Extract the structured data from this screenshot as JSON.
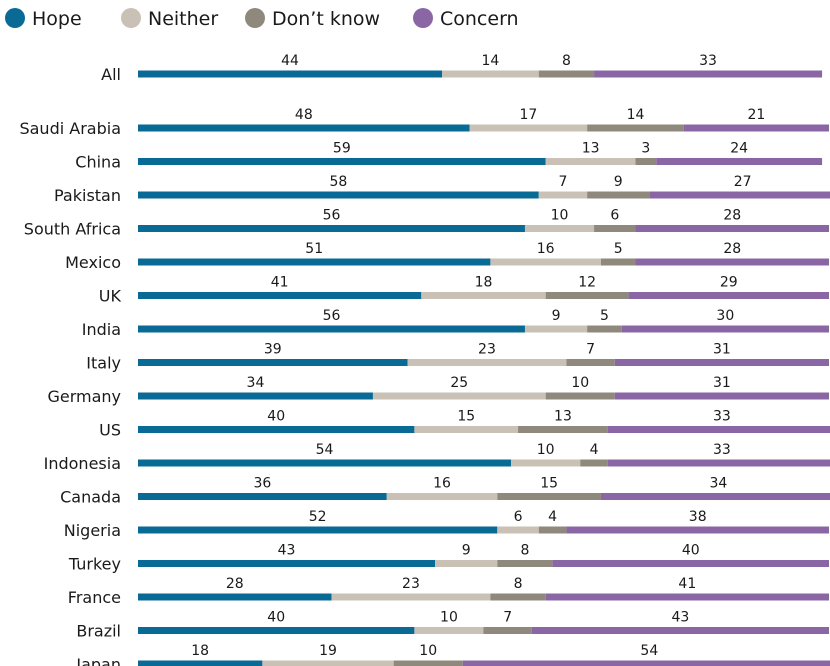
{
  "colors": {
    "hope": "#0a6a96",
    "neither": "#c9c1b6",
    "dont_know": "#8f887c",
    "concern": "#8a67a4"
  },
  "chart_data": {
    "type": "bar",
    "orientation": "horizontal",
    "stacked": true,
    "legend_position": "top-left",
    "grid": false,
    "xlim": [
      0,
      100
    ],
    "categories": [
      "All",
      "Saudi Arabia",
      "China",
      "Pakistan",
      "South Africa",
      "Mexico",
      "UK",
      "India",
      "Italy",
      "Germany",
      "US",
      "Indonesia",
      "Canada",
      "Nigeria",
      "Turkey",
      "France",
      "Brazil",
      "Japan"
    ],
    "series": [
      {
        "name": "Hope",
        "color": "#0a6a96",
        "values": [
          44,
          48,
          59,
          58,
          56,
          51,
          41,
          56,
          39,
          34,
          40,
          54,
          36,
          52,
          43,
          28,
          40,
          18
        ]
      },
      {
        "name": "Neither",
        "color": "#c9c1b6",
        "values": [
          14,
          17,
          13,
          7,
          10,
          16,
          18,
          9,
          23,
          25,
          15,
          10,
          16,
          6,
          9,
          23,
          10,
          19
        ]
      },
      {
        "name": "Don’t know",
        "color": "#8f887c",
        "values": [
          8,
          14,
          3,
          9,
          6,
          5,
          12,
          5,
          7,
          10,
          13,
          4,
          15,
          4,
          8,
          8,
          7,
          10
        ]
      },
      {
        "name": "Concern",
        "color": "#8a67a4",
        "values": [
          33,
          21,
          24,
          27,
          28,
          28,
          29,
          30,
          31,
          31,
          33,
          33,
          34,
          38,
          40,
          41,
          43,
          54
        ]
      }
    ]
  }
}
